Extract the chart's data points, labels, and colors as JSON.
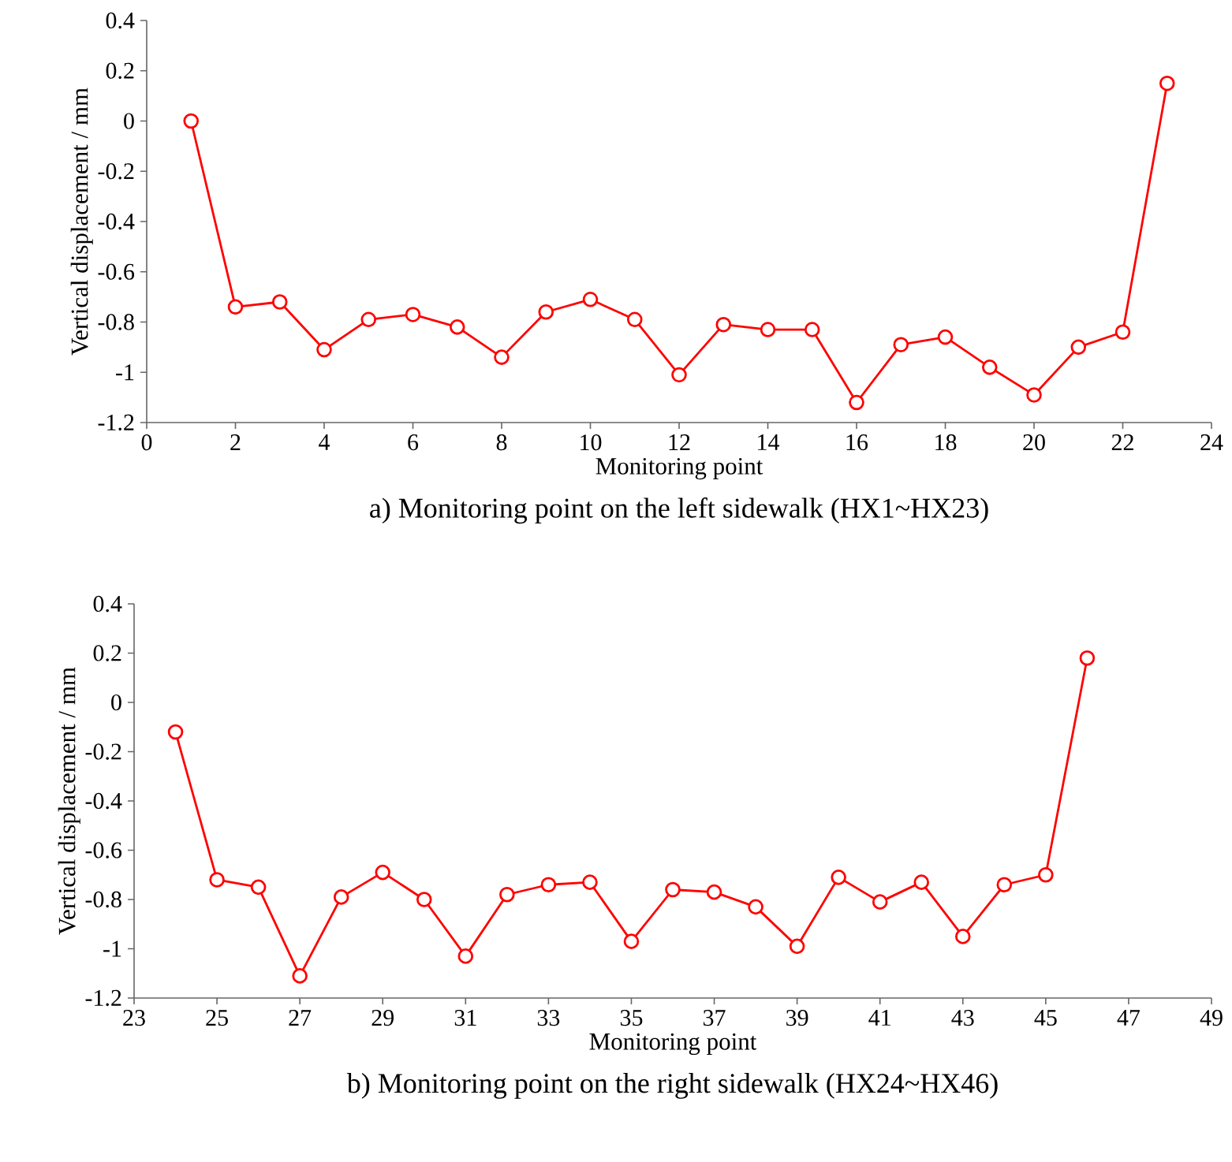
{
  "chart_data": [
    {
      "type": "line",
      "title": "a) Monitoring point on the left sidewalk (HX1~HX23)",
      "xlabel": "Monitoring point",
      "ylabel": "Vertical displacement / mm",
      "color": "#ff0000",
      "marker": "circle",
      "x": [
        1,
        2,
        3,
        4,
        5,
        6,
        7,
        8,
        9,
        10,
        11,
        12,
        13,
        14,
        15,
        16,
        17,
        18,
        19,
        20,
        21,
        22,
        23
      ],
      "values": [
        0,
        -0.74,
        -0.72,
        -0.91,
        -0.79,
        -0.77,
        -0.82,
        -0.94,
        -0.76,
        -0.71,
        -0.79,
        -1.01,
        -0.81,
        -0.83,
        -0.83,
        -1.12,
        -0.89,
        -0.86,
        -0.98,
        -1.09,
        -0.9,
        -0.84,
        0.15
      ],
      "xlim": [
        0,
        24
      ],
      "xticks": [
        0,
        2,
        4,
        6,
        8,
        10,
        12,
        14,
        16,
        18,
        20,
        22,
        24
      ],
      "ylim": [
        -1.2,
        0.4
      ],
      "yticks": [
        -1.2,
        -1,
        -0.8,
        -0.6,
        -0.4,
        -0.2,
        0,
        0.2,
        0.4
      ]
    },
    {
      "type": "line",
      "title": "b) Monitoring point on the right sidewalk (HX24~HX46)",
      "xlabel": "Monitoring point",
      "ylabel": "Vertical displacement / mm",
      "color": "#ff0000",
      "marker": "circle",
      "x": [
        24,
        25,
        26,
        27,
        28,
        29,
        30,
        31,
        32,
        33,
        34,
        35,
        36,
        37,
        38,
        39,
        40,
        41,
        42,
        43,
        44,
        45,
        46
      ],
      "values": [
        -0.12,
        -0.72,
        -0.75,
        -1.11,
        -0.79,
        -0.69,
        -0.8,
        -1.03,
        -0.78,
        -0.74,
        -0.73,
        -0.97,
        -0.76,
        -0.77,
        -0.83,
        -0.99,
        -0.71,
        -0.81,
        -0.73,
        -0.95,
        -0.74,
        -0.7,
        0.18
      ],
      "xlim": [
        23,
        49
      ],
      "xticks": [
        23,
        25,
        27,
        29,
        31,
        33,
        35,
        37,
        39,
        41,
        43,
        45,
        47,
        49
      ],
      "ylim": [
        -1.2,
        0.4
      ],
      "yticks": [
        -1.2,
        -1,
        -0.8,
        -0.6,
        -0.4,
        -0.2,
        0,
        0.2,
        0.4
      ]
    }
  ]
}
